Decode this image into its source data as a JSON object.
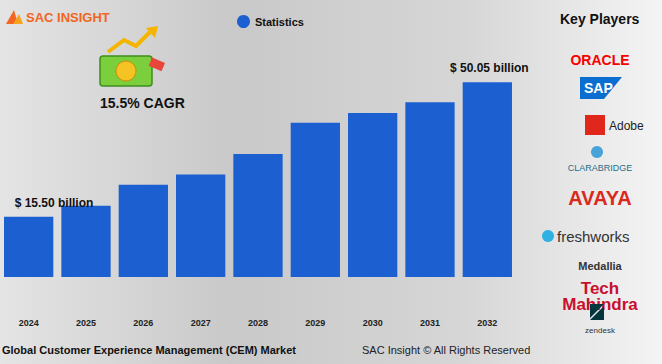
{
  "chart_data": {
    "type": "bar",
    "title": "Global Customer Experience Management (CEM) Market",
    "logo": "SAC INSIGHT",
    "footer": "SAC Insight © All Rights Reserved",
    "annotations": [
      "15.5% CAGR"
    ],
    "key_players_title": "Key Players",
    "key_players": [
      "ORACLE",
      "SAP",
      "Adobe",
      "CLARABRIDGE",
      "AVAYA",
      "freshworks",
      "Medallia",
      "Tech Mahindra",
      "zendesk"
    ],
    "categories": [
      "2024",
      "2025",
      "2026",
      "2027",
      "2028",
      "2029",
      "2030",
      "2031",
      "2032"
    ],
    "series": [
      {
        "name": "Statistics",
        "color": "#1c5fd0",
        "values": [
          15.5,
          18.3,
          23.7,
          26.3,
          31.6,
          39.6,
          42.1,
          44.9,
          50.05
        ],
        "value_labels": [
          "$ 15.50 billion",
          null,
          null,
          null,
          null,
          null,
          null,
          null,
          "$ 50.05 billion"
        ]
      }
    ],
    "ylim": [
      -9,
      56
    ],
    "grid": false,
    "tick_labels": "x",
    "data_labels": true,
    "legend": "top"
  }
}
